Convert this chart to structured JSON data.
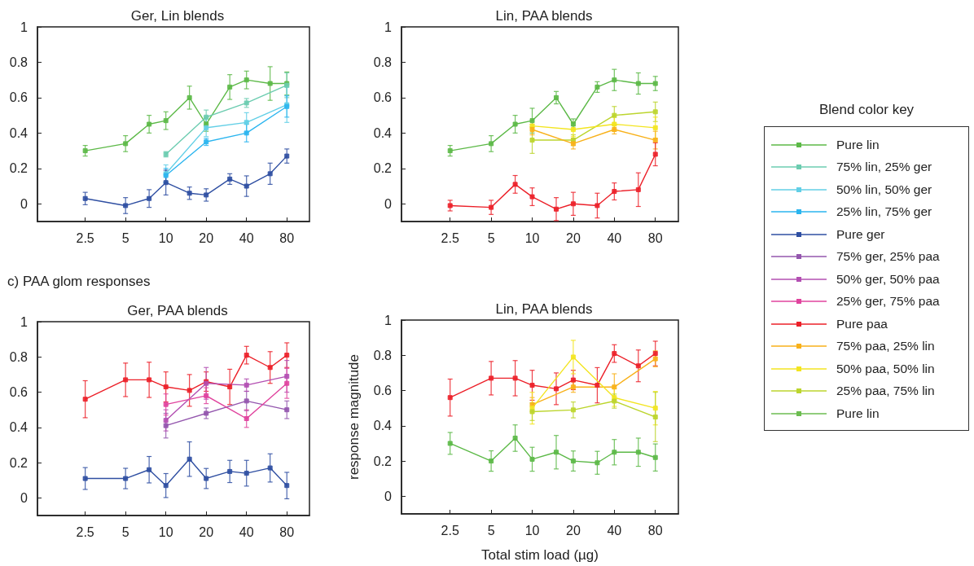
{
  "chart_data": [
    {
      "type": "line",
      "title": "Ger, Lin blends",
      "log": "x",
      "marker": "square",
      "line_style": "solid",
      "x": [
        2.5,
        5,
        7.5,
        10,
        15,
        20,
        30,
        40,
        60,
        80
      ],
      "xlim": [
        1.1,
        118
      ],
      "xticks": [
        2.5,
        5,
        10,
        20,
        40,
        80
      ],
      "ylim": [
        -0.1,
        1
      ],
      "yticks": [
        0,
        0.2,
        0.4,
        0.6,
        0.8,
        1
      ],
      "series": [
        {
          "color": "#5cb947",
          "values": [
            0.3,
            0.34,
            0.45,
            0.47,
            0.6,
            0.45,
            0.66,
            0.7,
            0.68,
            0.68
          ],
          "errors": [
            0.03,
            0.045,
            0.05,
            0.05,
            0.065,
            0.04,
            0.07,
            0.05,
            0.095,
            0.065
          ]
        },
        {
          "color": "#6cccb0",
          "x": [
            10,
            20,
            40,
            80
          ],
          "values": [
            0.28,
            0.49,
            0.57,
            0.67
          ],
          "errors": [
            0.015,
            0.04,
            0.025,
            0.07
          ]
        },
        {
          "color": "#62cfe6",
          "x": [
            10,
            20,
            40,
            80
          ],
          "values": [
            0.17,
            0.43,
            0.46,
            0.56
          ],
          "errors": [
            0.05,
            0.05,
            0.055,
            0.1
          ]
        },
        {
          "color": "#2bb5ef",
          "x": [
            10,
            20,
            40,
            80
          ],
          "values": [
            0.16,
            0.35,
            0.4,
            0.55
          ],
          "errors": [
            0.04,
            0.02,
            0.05,
            0.06
          ]
        },
        {
          "color": "#2f4fa2",
          "values": [
            0.03,
            -0.01,
            0.03,
            0.12,
            0.06,
            0.05,
            0.14,
            0.1,
            0.17,
            0.27
          ],
          "errors": [
            0.035,
            0.045,
            0.05,
            0.07,
            0.035,
            0.035,
            0.03,
            0.058,
            0.06,
            0.04
          ]
        }
      ]
    },
    {
      "type": "line",
      "title": "Lin, PAA blends",
      "log": "x",
      "marker": "square",
      "line_style": "solid",
      "x": [
        2.5,
        5,
        7.5,
        10,
        15,
        20,
        30,
        40,
        60,
        80
      ],
      "xlim": [
        1.1,
        118
      ],
      "xticks": [
        2.5,
        5,
        10,
        20,
        40,
        80
      ],
      "ylim": [
        -0.1,
        1
      ],
      "yticks": [
        0,
        0.2,
        0.4,
        0.6,
        0.8,
        1
      ],
      "series": [
        {
          "color": "#5cb947",
          "values": [
            0.3,
            0.34,
            0.45,
            0.47,
            0.6,
            0.45,
            0.66,
            0.7,
            0.68,
            0.68
          ],
          "errors": [
            0.03,
            0.045,
            0.05,
            0.07,
            0.035,
            0.03,
            0.03,
            0.06,
            0.06,
            0.04
          ]
        },
        {
          "color": "#bcd52e",
          "x": [
            10,
            20,
            40,
            80
          ],
          "values": [
            0.36,
            0.36,
            0.5,
            0.52
          ],
          "errors": [
            0.075,
            0.03,
            0.05,
            0.055
          ]
        },
        {
          "color": "#f3e520",
          "x": [
            10,
            20,
            40,
            80
          ],
          "values": [
            0.44,
            0.42,
            0.45,
            0.43
          ],
          "errors": [
            null,
            0.04,
            0.04,
            0.06
          ]
        },
        {
          "color": "#f8b11a",
          "x": [
            10,
            20,
            40,
            80
          ],
          "values": [
            0.42,
            0.34,
            0.42,
            0.36
          ],
          "errors": [
            0.03,
            0.03,
            0.025,
            0.05
          ]
        },
        {
          "color": "#ec2029",
          "values": [
            -0.01,
            -0.02,
            0.11,
            0.04,
            -0.03,
            0.0,
            -0.01,
            0.07,
            0.08,
            0.28
          ],
          "errors": [
            0.03,
            0.04,
            0.05,
            0.05,
            0.065,
            0.065,
            0.07,
            0.048,
            0.095,
            0.065
          ]
        }
      ]
    },
    {
      "type": "line",
      "title": "Ger, PAA blends",
      "annotations": [
        "c) PAA glom responses"
      ],
      "log": "x",
      "marker": "square",
      "line_style": "solid",
      "x": [
        2.5,
        5,
        7.5,
        10,
        15,
        20,
        30,
        40,
        60,
        80
      ],
      "xlim": [
        1.1,
        118
      ],
      "xticks": [
        2.5,
        5,
        10,
        20,
        40,
        80
      ],
      "ylim": [
        -0.1,
        1
      ],
      "yticks": [
        0,
        0.2,
        0.4,
        0.6,
        0.8,
        1
      ],
      "series": [
        {
          "color": "#ec2029",
          "values": [
            0.56,
            0.67,
            0.67,
            0.63,
            0.61,
            0.66,
            0.63,
            0.81,
            0.74,
            0.81
          ],
          "errors": [
            0.105,
            0.095,
            0.1,
            0.085,
            0.09,
            0.055,
            0.1,
            0.05,
            0.09,
            0.07
          ]
        },
        {
          "color": "#9457ae",
          "x": [
            10,
            20,
            40,
            80
          ],
          "values": [
            0.41,
            0.48,
            0.55,
            0.5
          ],
          "errors": [
            0.07,
            0.03,
            0.055,
            0.05
          ]
        },
        {
          "color": "#b34fb2",
          "x": [
            10,
            20,
            40,
            80
          ],
          "values": [
            0.44,
            0.65,
            0.64,
            0.69
          ],
          "errors": [
            0.06,
            0.09,
            0.035,
            0.09
          ]
        },
        {
          "color": "#e0449e",
          "x": [
            10,
            20,
            40,
            80
          ],
          "values": [
            0.53,
            0.58,
            0.45,
            0.65
          ],
          "errors": [
            0.06,
            0.045,
            0.05,
            0.085
          ]
        },
        {
          "color": "#2f4fa2",
          "values": [
            0.11,
            0.11,
            0.16,
            0.07,
            0.22,
            0.11,
            0.15,
            0.14,
            0.17,
            0.07
          ],
          "errors": [
            0.062,
            0.058,
            0.075,
            0.068,
            0.098,
            0.057,
            0.063,
            0.073,
            0.08,
            0.075
          ]
        }
      ]
    },
    {
      "type": "line",
      "title": "Lin, PAA blends",
      "xlabel": "Total stim load (µg)",
      "ylabel": "response magnitude",
      "log": "x",
      "marker": "square",
      "line_style": "solid",
      "x": [
        2.5,
        5,
        7.5,
        10,
        15,
        20,
        30,
        40,
        60,
        80
      ],
      "xlim": [
        1.1,
        118
      ],
      "xticks": [
        2.5,
        5,
        10,
        20,
        40,
        80
      ],
      "ylim": [
        -0.1,
        1
      ],
      "yticks": [
        0,
        0.2,
        0.4,
        0.6,
        0.8,
        1
      ],
      "series": [
        {
          "color": "#ec2029",
          "values": [
            0.56,
            0.67,
            0.67,
            0.63,
            0.61,
            0.66,
            0.63,
            0.81,
            0.74,
            0.81
          ],
          "errors": [
            0.105,
            0.095,
            0.1,
            0.085,
            0.09,
            0.055,
            0.1,
            0.05,
            0.09,
            0.07
          ]
        },
        {
          "color": "#f8b11a",
          "x": [
            10,
            20,
            40,
            80
          ],
          "values": [
            0.52,
            0.62,
            0.62,
            0.78
          ],
          "errors": [
            0.04,
            0.03,
            0.075,
            0.045
          ]
        },
        {
          "color": "#f3e520",
          "x": [
            10,
            20,
            40,
            80
          ],
          "values": [
            0.5,
            0.79,
            0.56,
            0.5
          ],
          "errors": [
            0.09,
            0.095,
            0.05,
            0.095
          ]
        },
        {
          "color": "#bcd52e",
          "x": [
            10,
            20,
            40,
            80
          ],
          "values": [
            0.48,
            0.49,
            0.54,
            0.45
          ],
          "errors": [
            0.05,
            0.045,
            0.04,
            0.14
          ]
        },
        {
          "color": "#5cb947",
          "values": [
            0.3,
            0.2,
            0.33,
            0.21,
            0.25,
            0.2,
            0.19,
            0.25,
            0.25,
            0.22
          ],
          "errors": [
            0.062,
            0.058,
            0.075,
            0.068,
            0.095,
            0.057,
            0.065,
            0.072,
            0.08,
            0.077
          ]
        }
      ]
    },
    {
      "type": "other",
      "title": "Blend color key",
      "categories": [
        "Pure lin",
        "75% lin, 25% ger",
        "50% lin, 50% ger",
        "25% lin, 75% ger",
        "Pure ger",
        "75% ger, 25% paa",
        "50% ger, 50% paa",
        "25% ger, 75% paa",
        "Pure paa",
        "75% paa, 25% lin",
        "50% paa, 50% lin",
        "25% paa, 75% lin",
        "Pure lin"
      ],
      "colors": [
        "#5cb947",
        "#6cccb0",
        "#62cfe6",
        "#2bb5ef",
        "#2f4fa2",
        "#9457ae",
        "#b34fb2",
        "#e0449e",
        "#ec2029",
        "#f8b11a",
        "#f3e520",
        "#bcd52e",
        "#6cbd50"
      ]
    }
  ]
}
